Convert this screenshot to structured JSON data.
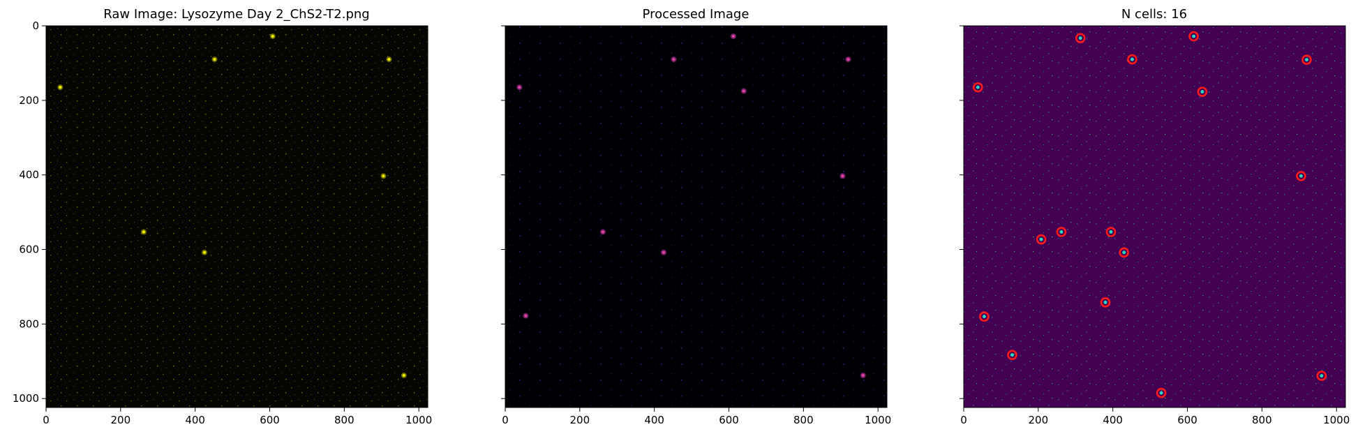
{
  "chart_data": [
    {
      "type": "heatmap",
      "title": "Raw Image: Lysozyme Day 2_ChS2-T2.png",
      "colormap": "black-yellow",
      "background_color": "#050502",
      "speckle_color": "#c8c800",
      "xlim": [
        0,
        1024
      ],
      "ylim": [
        1024,
        0
      ],
      "xticks": [
        0,
        200,
        400,
        600,
        800,
        1000
      ],
      "yticks": [
        0,
        200,
        400,
        600,
        800,
        1000
      ],
      "bright_spots": [
        {
          "x": 920,
          "y": 90
        },
        {
          "x": 38,
          "y": 165
        },
        {
          "x": 262,
          "y": 553
        },
        {
          "x": 425,
          "y": 608
        },
        {
          "x": 905,
          "y": 403
        },
        {
          "x": 960,
          "y": 938
        },
        {
          "x": 452,
          "y": 90
        },
        {
          "x": 608,
          "y": 28
        }
      ]
    },
    {
      "type": "heatmap",
      "title": "Processed Image",
      "colormap": "magma",
      "background_color": "#000004",
      "speckle_color": "#7a22b8",
      "xlim": [
        0,
        1024
      ],
      "ylim": [
        1024,
        0
      ],
      "xticks": [
        0,
        200,
        400,
        600,
        800,
        1000
      ],
      "yticks": [
        0,
        200,
        400,
        600,
        800,
        1000
      ],
      "bright_spots": [
        {
          "x": 920,
          "y": 90
        },
        {
          "x": 38,
          "y": 165
        },
        {
          "x": 262,
          "y": 553
        },
        {
          "x": 425,
          "y": 608
        },
        {
          "x": 905,
          "y": 403
        },
        {
          "x": 960,
          "y": 938
        },
        {
          "x": 452,
          "y": 90
        },
        {
          "x": 612,
          "y": 28
        },
        {
          "x": 640,
          "y": 175
        },
        {
          "x": 55,
          "y": 778
        }
      ]
    },
    {
      "type": "scatter",
      "title": "N cells: 16",
      "colormap": "viridis",
      "background_color": "#440154",
      "speckle_color": "#3aa6a0",
      "marker_color": "#ff1a1a",
      "xlim": [
        0,
        1024
      ],
      "ylim": [
        1024,
        0
      ],
      "xticks": [
        0,
        200,
        400,
        600,
        800,
        1000
      ],
      "yticks": [
        0,
        200,
        400,
        600,
        800,
        1000
      ],
      "cells": [
        {
          "x": 313,
          "y": 33
        },
        {
          "x": 617,
          "y": 28
        },
        {
          "x": 452,
          "y": 90
        },
        {
          "x": 920,
          "y": 91
        },
        {
          "x": 38,
          "y": 165
        },
        {
          "x": 640,
          "y": 177
        },
        {
          "x": 905,
          "y": 403
        },
        {
          "x": 208,
          "y": 573
        },
        {
          "x": 262,
          "y": 553
        },
        {
          "x": 395,
          "y": 553
        },
        {
          "x": 430,
          "y": 608
        },
        {
          "x": 380,
          "y": 742
        },
        {
          "x": 55,
          "y": 780
        },
        {
          "x": 130,
          "y": 883
        },
        {
          "x": 530,
          "y": 985
        },
        {
          "x": 960,
          "y": 939
        }
      ]
    }
  ]
}
